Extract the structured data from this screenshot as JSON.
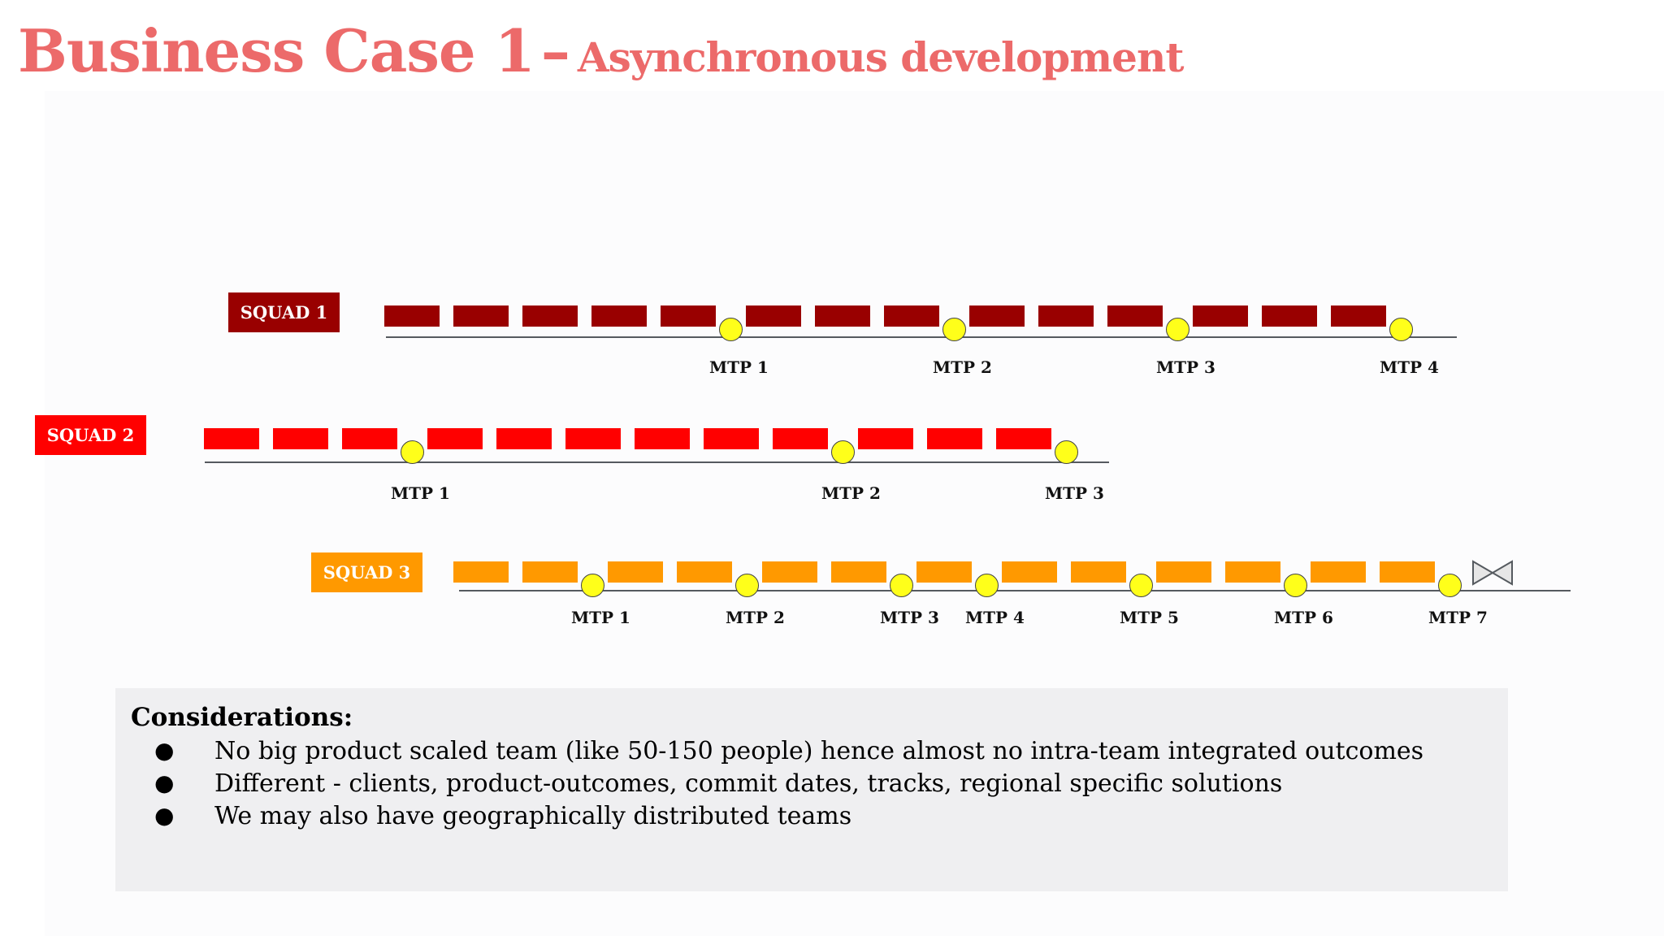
{
  "title": {
    "main": "Business Case 1",
    "separator": "–",
    "subtitle": "Asynchronous development",
    "color": "#ec6a6a"
  },
  "squads": [
    {
      "label": "SQUAD 1",
      "color": "#990000",
      "sequence": [
        "s",
        "s",
        "s",
        "s",
        "s",
        "m",
        "s",
        "s",
        "s",
        "m",
        "s",
        "s",
        "s",
        "m",
        "s",
        "s",
        "s",
        "m"
      ],
      "milestones": [
        "MTP 1",
        "MTP 2",
        "MTP 3",
        "MTP 4"
      ],
      "end_icon": ""
    },
    {
      "label": "SQUAD 2",
      "color": "#ff0000",
      "sequence": [
        "s",
        "s",
        "s",
        "m",
        "s",
        "s",
        "s",
        "s",
        "s",
        "s",
        "m",
        "s",
        "s",
        "s",
        "m"
      ],
      "milestones": [
        "MTP 1",
        "MTP 2",
        "MTP 3"
      ],
      "end_icon": ""
    },
    {
      "label": "SQUAD 3",
      "color": "#ff9900",
      "sequence": [
        "s",
        "s",
        "m",
        "s",
        "s",
        "m",
        "s",
        "s",
        "m",
        "s",
        "m",
        "s",
        "s",
        "m",
        "s",
        "s",
        "m",
        "s",
        "s",
        "m"
      ],
      "milestones": [
        "MTP 1",
        "MTP 2",
        "MTP 3",
        "MTP 4",
        "MTP 5",
        "MTP 6",
        "MTP 7"
      ],
      "end_icon": "bowtie-icon"
    }
  ],
  "milestone_color": "#ffff1a",
  "considerations": {
    "title": "Considerations:",
    "bullet": "●",
    "items": [
      "No big product scaled team (like 50-150 people) hence almost no intra-team  integrated outcomes",
      "Different - clients, product-outcomes, commit dates, tracks, regional specific solutions",
      "We may also have geographically distributed teams"
    ]
  }
}
